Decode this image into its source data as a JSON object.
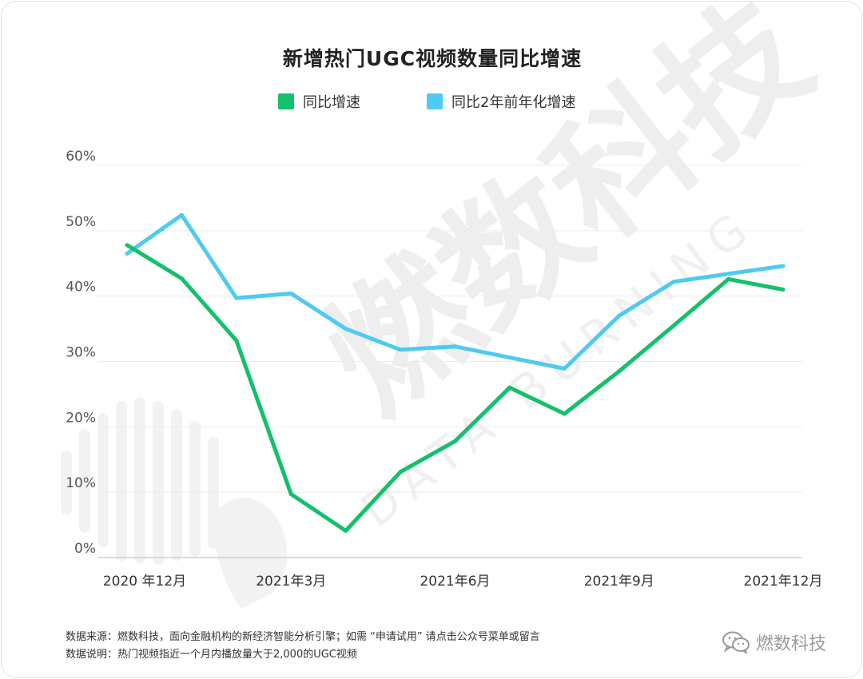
{
  "chart_data": {
    "type": "line",
    "title": "新增热门UGC视频数量同比增速",
    "categories": [
      "2020 年12月",
      "",
      "",
      "2021年3月",
      "",
      "",
      "2021年6月",
      "",
      "",
      "2021年9月",
      "",
      "",
      "2021年12月"
    ],
    "series": [
      {
        "name": "同比增速",
        "color": "#14c06c",
        "values": [
          47.8,
          42.7,
          33.2,
          9.7,
          4.1,
          13.1,
          17.8,
          26.0,
          22.0,
          28.5,
          35.5,
          42.6,
          41.0
        ]
      },
      {
        "name": "同比2年前年化增速",
        "color": "#4fcaf2",
        "values": [
          46.5,
          52.4,
          39.7,
          40.4,
          35.0,
          31.8,
          32.3,
          30.6,
          28.9,
          37.0,
          42.2,
          43.4,
          44.6
        ]
      }
    ],
    "yticks": [
      "60%",
      "50%",
      "40%",
      "30%",
      "20%",
      "10%",
      "0%"
    ],
    "ylim": [
      0,
      60
    ],
    "grid": true,
    "legend": "top-center"
  },
  "footnotes": {
    "source": "数据来源：燃数科技，面向金融机构的新经济智能分析引擎；如需 “申请试用” 请点击公众号菜单或留言",
    "note": "数据说明：热门视频指近一个月内播放量大于2,000的UGC视频"
  },
  "brand": {
    "name": "燃数科技",
    "icon": "wechat-icon"
  },
  "watermark": {
    "cn": "燃数科技",
    "en": "DATA BURNING"
  }
}
